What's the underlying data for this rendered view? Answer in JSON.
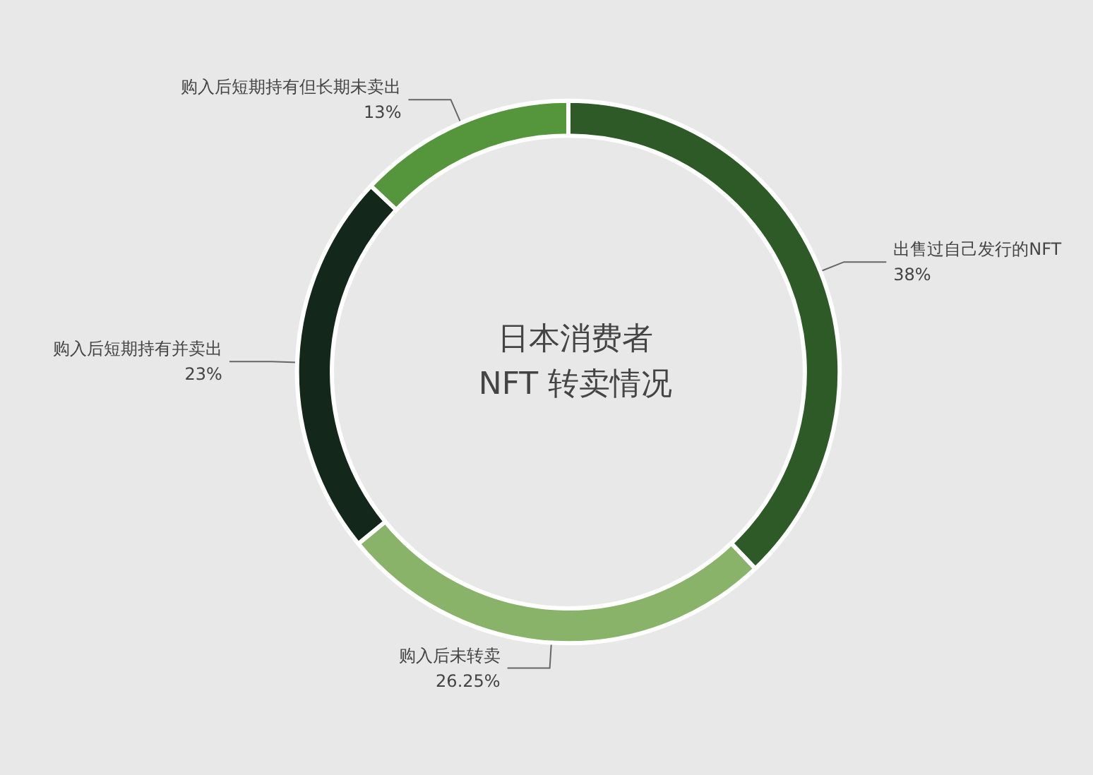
{
  "chart_data": {
    "type": "donut",
    "title": "日本消费者\nNFT 转卖情况",
    "categories": [
      "出售过自己发行的NFT",
      "购入后未转卖",
      "购入后短期持有并卖出",
      "购入后短期持有但长期未卖出"
    ],
    "values": [
      38,
      26.25,
      23,
      13
    ],
    "value_labels": [
      "38%",
      "26.25%",
      "23%",
      "13%"
    ],
    "colors": [
      "#2d5a27",
      "#8ab36a",
      "#13271a",
      "#55963c"
    ],
    "legend": false
  }
}
